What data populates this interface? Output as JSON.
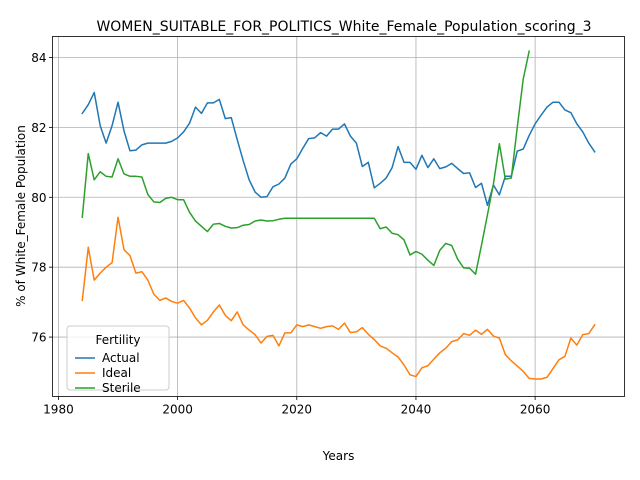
{
  "chart_data": {
    "type": "line",
    "title": "WOMEN_SUITABLE_FOR_POLITICS_White_Female_Population_scoring_3",
    "xlabel": "Years",
    "ylabel": "% of White_Female Population",
    "xlim": [
      1979,
      2075
    ],
    "ylim": [
      74.3,
      84.6
    ],
    "xticks": [
      1980,
      2000,
      2020,
      2040,
      2060
    ],
    "yticks": [
      76,
      78,
      80,
      82,
      84
    ],
    "grid": true,
    "legend": {
      "title": "Fertility",
      "placement": "lower-left"
    },
    "series": [
      {
        "name": "Actual",
        "color": "#1f77b4",
        "x": [
          1984,
          1985,
          1986,
          1987,
          1988,
          1989,
          1990,
          1991,
          1992,
          1993,
          1994,
          1995,
          1996,
          1997,
          1998,
          1999,
          2000,
          2001,
          2002,
          2003,
          2004,
          2005,
          2006,
          2007,
          2008,
          2009,
          2010,
          2011,
          2012,
          2013,
          2014,
          2015,
          2016,
          2017,
          2018,
          2019,
          2020,
          2021,
          2022,
          2023,
          2024,
          2025,
          2026,
          2027,
          2028,
          2029,
          2030,
          2031,
          2032,
          2033,
          2034,
          2035,
          2036,
          2037,
          2038,
          2039,
          2040,
          2041,
          2042,
          2043,
          2044,
          2045,
          2046,
          2047,
          2048,
          2049,
          2050,
          2051,
          2052,
          2053,
          2054,
          2055,
          2056,
          2057,
          2058,
          2059,
          2060,
          2061,
          2062,
          2063,
          2064,
          2065,
          2066,
          2067,
          2068,
          2069,
          2070
        ],
        "values": [
          82.4,
          82.65,
          83.0,
          82.05,
          81.55,
          82.05,
          82.72,
          81.9,
          81.33,
          81.35,
          81.5,
          81.55,
          81.55,
          81.55,
          81.55,
          81.6,
          81.7,
          81.87,
          82.12,
          82.58,
          82.4,
          82.7,
          82.7,
          82.8,
          82.25,
          82.28,
          81.65,
          81.05,
          80.5,
          80.15,
          80.0,
          80.02,
          80.3,
          80.38,
          80.55,
          80.95,
          81.1,
          81.4,
          81.68,
          81.7,
          81.85,
          81.75,
          81.95,
          81.95,
          82.1,
          81.75,
          81.55,
          80.88,
          81.0,
          80.27,
          80.4,
          80.55,
          80.85,
          81.45,
          81.0,
          81.0,
          80.8,
          81.2,
          80.85,
          81.1,
          80.82,
          80.87,
          80.97,
          80.82,
          80.68,
          80.7,
          80.28,
          80.4,
          79.77,
          80.35,
          80.07,
          80.6,
          80.6,
          81.32,
          81.38,
          81.77,
          82.1,
          82.35,
          82.58,
          82.72,
          82.72,
          82.5,
          82.42,
          82.1,
          81.87,
          81.55,
          81.3
        ]
      },
      {
        "name": "Ideal",
        "color": "#ff7f0e",
        "x": [
          1984,
          1985,
          1986,
          1987,
          1988,
          1989,
          1990,
          1991,
          1992,
          1993,
          1994,
          1995,
          1996,
          1997,
          1998,
          1999,
          2000,
          2001,
          2002,
          2003,
          2004,
          2005,
          2006,
          2007,
          2008,
          2009,
          2010,
          2011,
          2012,
          2013,
          2014,
          2015,
          2016,
          2017,
          2018,
          2019,
          2020,
          2021,
          2022,
          2023,
          2024,
          2025,
          2026,
          2027,
          2028,
          2029,
          2030,
          2031,
          2032,
          2033,
          2034,
          2035,
          2036,
          2037,
          2038,
          2039,
          2040,
          2041,
          2042,
          2043,
          2044,
          2045,
          2046,
          2047,
          2048,
          2049,
          2050,
          2051,
          2052,
          2053,
          2054,
          2055,
          2056,
          2057,
          2058,
          2059,
          2060,
          2061,
          2062,
          2063,
          2064,
          2065,
          2066,
          2067,
          2068,
          2069,
          2070
        ],
        "values": [
          77.05,
          78.57,
          77.63,
          77.83,
          78.0,
          78.13,
          79.43,
          78.5,
          78.33,
          77.83,
          77.87,
          77.63,
          77.23,
          77.05,
          77.12,
          77.02,
          76.97,
          77.05,
          76.83,
          76.55,
          76.35,
          76.48,
          76.72,
          76.92,
          76.62,
          76.47,
          76.72,
          76.35,
          76.2,
          76.07,
          75.83,
          76.02,
          76.05,
          75.75,
          76.12,
          76.12,
          76.35,
          76.3,
          76.35,
          76.3,
          76.25,
          76.3,
          76.32,
          76.22,
          76.4,
          76.13,
          76.15,
          76.27,
          76.08,
          75.93,
          75.75,
          75.68,
          75.55,
          75.43,
          75.2,
          74.92,
          74.87,
          75.12,
          75.18,
          75.37,
          75.55,
          75.68,
          75.87,
          75.92,
          76.1,
          76.05,
          76.2,
          76.08,
          76.22,
          76.03,
          75.97,
          75.5,
          75.32,
          75.17,
          75.02,
          74.82,
          74.8,
          74.8,
          74.85,
          75.1,
          75.35,
          75.45,
          75.97,
          75.77,
          76.07,
          76.1,
          76.35
        ]
      },
      {
        "name": "Sterile",
        "color": "#2ca02c",
        "x": [
          1984,
          1985,
          1986,
          1987,
          1988,
          1989,
          1990,
          1991,
          1992,
          1993,
          1994,
          1995,
          1996,
          1997,
          1998,
          1999,
          2000,
          2001,
          2002,
          2003,
          2004,
          2005,
          2006,
          2007,
          2008,
          2009,
          2010,
          2011,
          2012,
          2013,
          2014,
          2015,
          2016,
          2017,
          2018,
          2019,
          2020,
          2021,
          2022,
          2023,
          2024,
          2025,
          2026,
          2027,
          2028,
          2029,
          2030,
          2031,
          2032,
          2033,
          2034,
          2035,
          2036,
          2037,
          2038,
          2039,
          2040,
          2041,
          2042,
          2043,
          2044,
          2045,
          2046,
          2047,
          2048,
          2049,
          2050,
          2051,
          2052,
          2053,
          2054,
          2055,
          2056,
          2057,
          2058,
          2059
        ],
        "values": [
          79.43,
          81.25,
          80.5,
          80.73,
          80.6,
          80.58,
          81.1,
          80.67,
          80.6,
          80.6,
          80.58,
          80.08,
          79.87,
          79.85,
          79.97,
          80.0,
          79.93,
          79.93,
          79.57,
          79.32,
          79.17,
          79.02,
          79.23,
          79.25,
          79.17,
          79.12,
          79.13,
          79.2,
          79.22,
          79.32,
          79.35,
          79.32,
          79.33,
          79.37,
          79.4,
          79.4,
          79.4,
          79.4,
          79.4,
          79.4,
          79.4,
          79.4,
          79.4,
          79.4,
          79.4,
          79.4,
          79.4,
          79.4,
          79.4,
          79.4,
          79.1,
          79.15,
          78.97,
          78.93,
          78.78,
          78.35,
          78.45,
          78.37,
          78.2,
          78.05,
          78.48,
          78.68,
          78.62,
          78.23,
          77.98,
          77.97,
          77.8,
          78.63,
          79.5,
          80.38,
          81.53,
          80.52,
          80.55,
          82.0,
          83.38,
          84.18
        ]
      }
    ]
  }
}
